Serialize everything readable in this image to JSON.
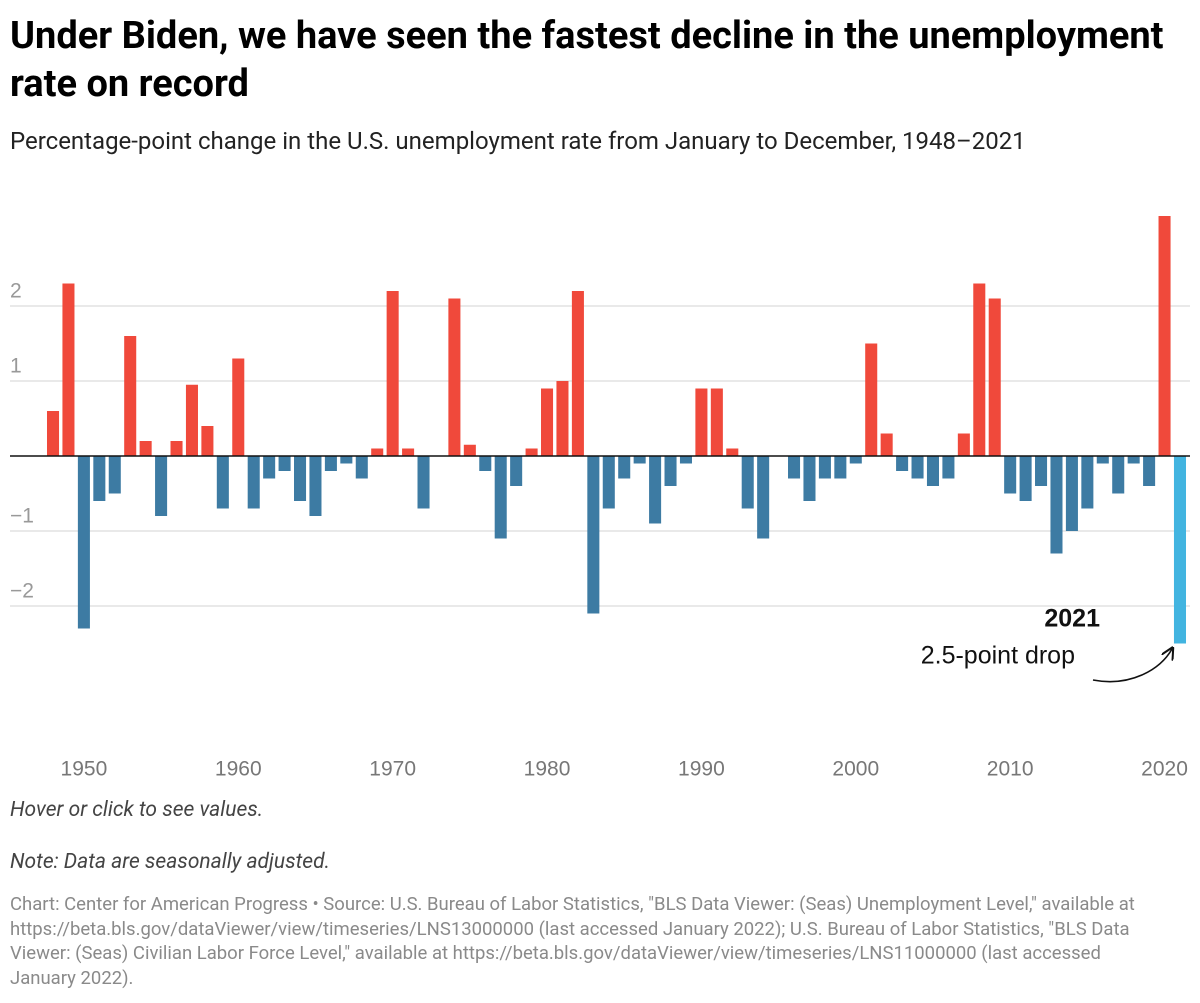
{
  "chart_data": {
    "type": "bar",
    "title": "Under Biden, we have seen the fastest decline in the unemployment rate on record",
    "subtitle": "Percentage-point change in the U.S. unemployment rate from January to December, 1948–2021",
    "x": [
      1948,
      1949,
      1950,
      1951,
      1952,
      1953,
      1954,
      1955,
      1956,
      1957,
      1958,
      1959,
      1960,
      1961,
      1962,
      1963,
      1964,
      1965,
      1966,
      1967,
      1968,
      1969,
      1970,
      1971,
      1972,
      1973,
      1974,
      1975,
      1976,
      1977,
      1978,
      1979,
      1980,
      1981,
      1982,
      1983,
      1984,
      1985,
      1986,
      1987,
      1988,
      1989,
      1990,
      1991,
      1992,
      1993,
      1994,
      1995,
      1996,
      1997,
      1998,
      1999,
      2000,
      2001,
      2002,
      2003,
      2004,
      2005,
      2006,
      2007,
      2008,
      2009,
      2010,
      2011,
      2012,
      2013,
      2014,
      2015,
      2016,
      2017,
      2018,
      2019,
      2020,
      2021
    ],
    "values": [
      0.6,
      2.3,
      -2.3,
      -0.6,
      -0.5,
      1.6,
      0.2,
      -0.8,
      0.2,
      0.95,
      0.4,
      -0.7,
      1.3,
      -0.7,
      -0.3,
      -0.2,
      -0.6,
      -0.8,
      -0.2,
      -0.1,
      -0.3,
      0.1,
      2.2,
      0.1,
      -0.7,
      0,
      2.1,
      0.15,
      -0.2,
      -1.1,
      -0.4,
      0.1,
      0.9,
      1.0,
      2.2,
      -2.1,
      -0.7,
      -0.3,
      -0.1,
      -0.9,
      -0.4,
      -0.1,
      0.9,
      0.9,
      0.1,
      -0.7,
      -1.1,
      0,
      -0.3,
      -0.6,
      -0.3,
      -0.3,
      -0.1,
      1.5,
      0.3,
      -0.2,
      -0.3,
      -0.4,
      -0.3,
      0.3,
      2.3,
      2.1,
      -0.5,
      -0.6,
      -0.4,
      -1.3,
      -1.0,
      -0.7,
      -0.1,
      -0.5,
      -0.1,
      -0.4,
      3.2,
      -2.5
    ],
    "color_up": "#f0493b",
    "color_down": "#3d7ba3",
    "highlight_color": "#42b4e0",
    "xlim": [
      1947.5,
      2021.5
    ],
    "xticks": [
      1950,
      1960,
      1970,
      1980,
      1990,
      2000,
      2010,
      2020
    ],
    "ylim": [
      -3.5,
      3.5
    ],
    "yticks": [
      {
        "value": -2,
        "label": "−2"
      },
      {
        "value": -1,
        "label": "−1"
      },
      1,
      2
    ],
    "grid": true,
    "annotation": {
      "title": "2021",
      "text": "2.5-point drop"
    },
    "interaction_note": "Hover or click to see values.",
    "note": "Note: Data are seasonally adjusted.",
    "source": "Chart: Center for American Progress • Source: U.S. Bureau of Labor Statistics, \"BLS Data Viewer: (Seas) Unemployment Level,\" available at https://beta.bls.gov/dataViewer/view/timeseries/LNS13000000 (last accessed January 2022); U.S. Bureau of Labor Statistics, \"BLS Data Viewer: (Seas) Civilian Labor Force Level,\" available at https://beta.bls.gov/dataViewer/view/timeseries/LNS11000000 (last accessed January 2022)."
  }
}
